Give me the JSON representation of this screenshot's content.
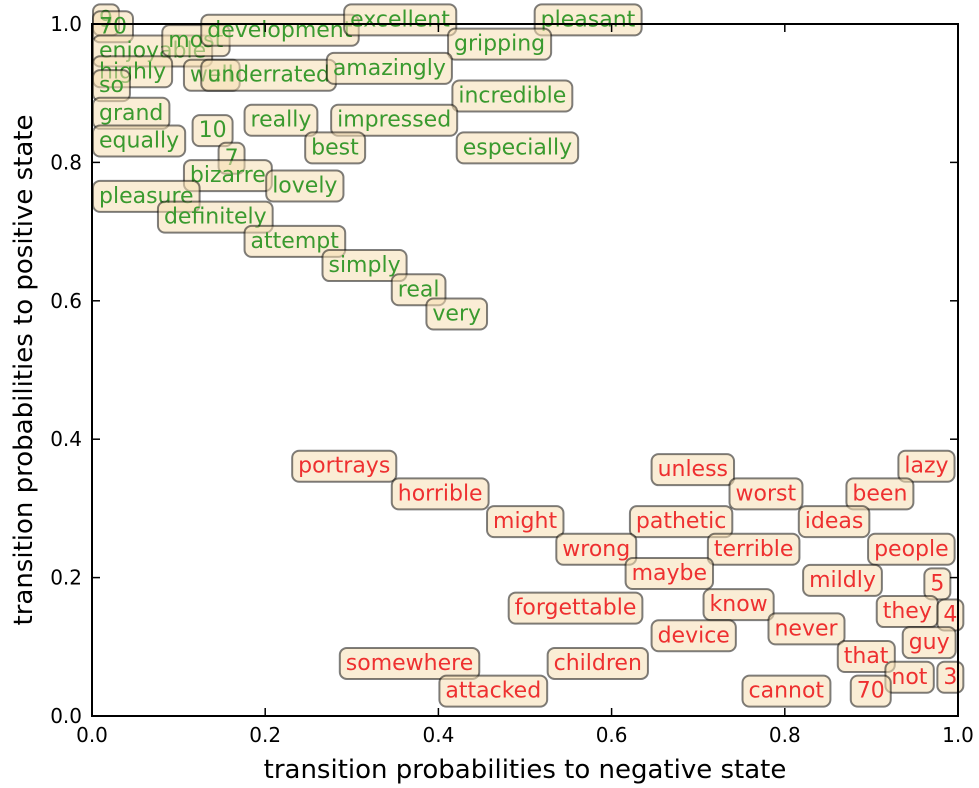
{
  "chart_data": {
    "type": "scatter",
    "title": "",
    "xlabel": "transition probabilities to negative state",
    "ylabel": "transition probabilities to positive state",
    "xlim": [
      0.0,
      1.0
    ],
    "ylim": [
      0.0,
      1.0
    ],
    "x_ticks": [
      "0.0",
      "0.2",
      "0.4",
      "0.6",
      "0.8",
      "1.0"
    ],
    "y_ticks": [
      "0.0",
      "0.2",
      "0.4",
      "0.6",
      "0.8",
      "1.0"
    ],
    "grid": false,
    "legend": "none",
    "colors": {
      "positive": "#3a9a2f",
      "negative": "#ee3030"
    },
    "series": [
      {
        "color_key": "positive",
        "points": [
          {
            "label": "9",
            "x": 0.0,
            "y": 0.985
          },
          {
            "label": "70",
            "x": 0.0,
            "y": 0.975
          },
          {
            "label": "enjoyable",
            "x": 0.0,
            "y": 0.94
          },
          {
            "label": "most",
            "x": 0.08,
            "y": 0.955
          },
          {
            "label": "development",
            "x": 0.125,
            "y": 0.97
          },
          {
            "label": "excellent",
            "x": 0.29,
            "y": 0.985
          },
          {
            "label": "pleasant",
            "x": 0.51,
            "y": 0.985
          },
          {
            "label": "gripping",
            "x": 0.41,
            "y": 0.95
          },
          {
            "label": "highly",
            "x": 0.0,
            "y": 0.91
          },
          {
            "label": "well",
            "x": 0.105,
            "y": 0.905
          },
          {
            "label": "underrated",
            "x": 0.125,
            "y": 0.905
          },
          {
            "label": "amazingly",
            "x": 0.27,
            "y": 0.915
          },
          {
            "label": "so",
            "x": 0.0,
            "y": 0.89
          },
          {
            "label": "incredible",
            "x": 0.415,
            "y": 0.875
          },
          {
            "label": "grand",
            "x": 0.0,
            "y": 0.85
          },
          {
            "label": "really",
            "x": 0.175,
            "y": 0.84
          },
          {
            "label": "impressed",
            "x": 0.275,
            "y": 0.84
          },
          {
            "label": "10",
            "x": 0.115,
            "y": 0.825
          },
          {
            "label": "equally",
            "x": 0.0,
            "y": 0.81
          },
          {
            "label": "best",
            "x": 0.245,
            "y": 0.8
          },
          {
            "label": "especially",
            "x": 0.42,
            "y": 0.8
          },
          {
            "label": "7",
            "x": 0.145,
            "y": 0.785
          },
          {
            "label": "bizarre",
            "x": 0.105,
            "y": 0.76
          },
          {
            "label": "lovely",
            "x": 0.2,
            "y": 0.745
          },
          {
            "label": "pleasure",
            "x": 0.0,
            "y": 0.73
          },
          {
            "label": "definitely",
            "x": 0.075,
            "y": 0.7
          },
          {
            "label": "attempt",
            "x": 0.175,
            "y": 0.665
          },
          {
            "label": "simply",
            "x": 0.265,
            "y": 0.63
          },
          {
            "label": "real",
            "x": 0.345,
            "y": 0.595
          },
          {
            "label": "very",
            "x": 0.385,
            "y": 0.56
          }
        ]
      },
      {
        "color_key": "negative",
        "points": [
          {
            "label": "portrays",
            "x": 0.23,
            "y": 0.34
          },
          {
            "label": "horrible",
            "x": 0.345,
            "y": 0.3
          },
          {
            "label": "might",
            "x": 0.455,
            "y": 0.26
          },
          {
            "label": "unless",
            "x": 0.645,
            "y": 0.335
          },
          {
            "label": "lazy",
            "x": 0.93,
            "y": 0.34
          },
          {
            "label": "worst",
            "x": 0.735,
            "y": 0.3
          },
          {
            "label": "been",
            "x": 0.87,
            "y": 0.3
          },
          {
            "label": "pathetic",
            "x": 0.62,
            "y": 0.26
          },
          {
            "label": "ideas",
            "x": 0.815,
            "y": 0.26
          },
          {
            "label": "wrong",
            "x": 0.535,
            "y": 0.22
          },
          {
            "label": "terrible",
            "x": 0.71,
            "y": 0.22
          },
          {
            "label": "people",
            "x": 0.895,
            "y": 0.22
          },
          {
            "label": "maybe",
            "x": 0.615,
            "y": 0.185
          },
          {
            "label": "mildly",
            "x": 0.82,
            "y": 0.175
          },
          {
            "label": "5",
            "x": 0.96,
            "y": 0.17
          },
          {
            "label": "forgettable",
            "x": 0.48,
            "y": 0.135
          },
          {
            "label": "know",
            "x": 0.705,
            "y": 0.14
          },
          {
            "label": "they",
            "x": 0.905,
            "y": 0.13
          },
          {
            "label": "4",
            "x": 0.975,
            "y": 0.125
          },
          {
            "label": "device",
            "x": 0.645,
            "y": 0.095
          },
          {
            "label": "never",
            "x": 0.78,
            "y": 0.105
          },
          {
            "label": "guy",
            "x": 0.935,
            "y": 0.085
          },
          {
            "label": "somewhere",
            "x": 0.285,
            "y": 0.055
          },
          {
            "label": "children",
            "x": 0.525,
            "y": 0.055
          },
          {
            "label": "that",
            "x": 0.86,
            "y": 0.065
          },
          {
            "label": "not",
            "x": 0.915,
            "y": 0.035
          },
          {
            "label": "3",
            "x": 0.975,
            "y": 0.035
          },
          {
            "label": "attacked",
            "x": 0.4,
            "y": 0.015
          },
          {
            "label": "cannot",
            "x": 0.75,
            "y": 0.015
          },
          {
            "label": "70",
            "x": 0.875,
            "y": 0.015
          }
        ]
      }
    ]
  }
}
